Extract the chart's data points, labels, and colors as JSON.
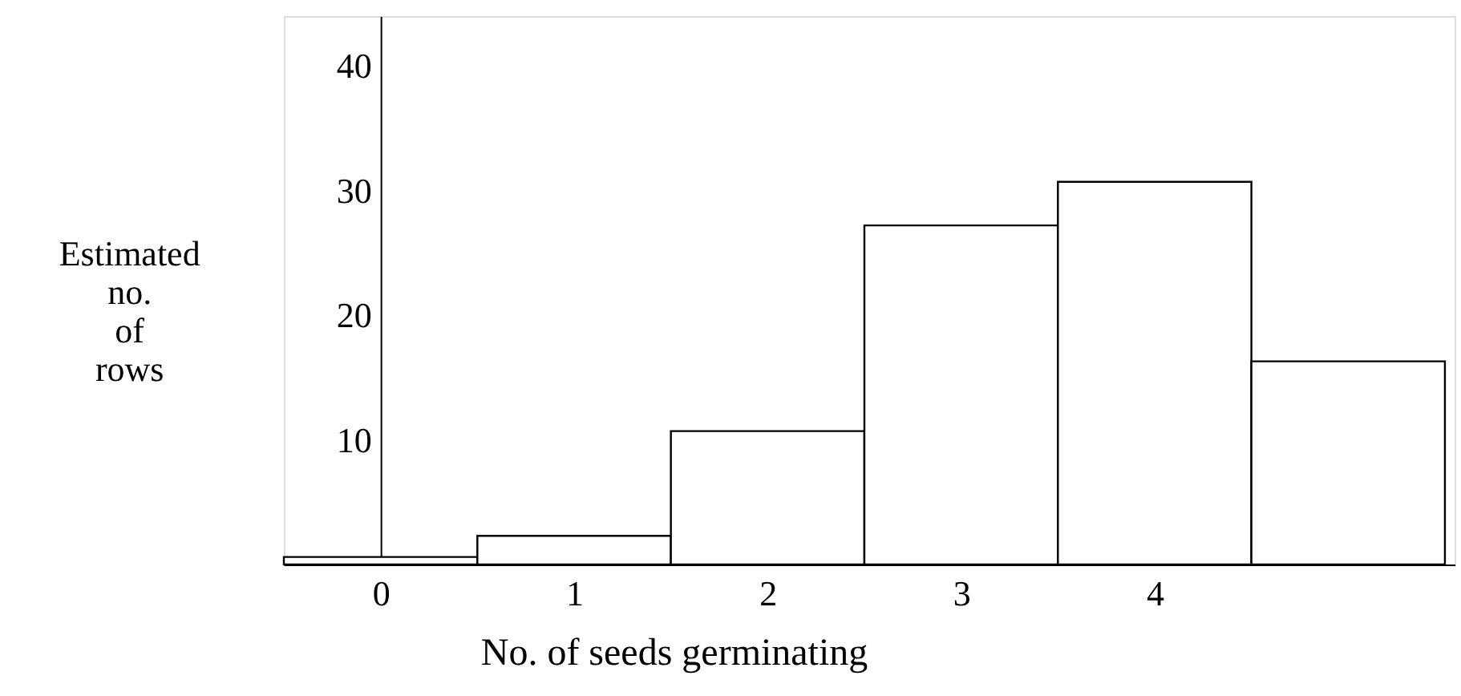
{
  "chart_data": {
    "type": "histogram",
    "xlabel": "No. of seeds germinating",
    "ylabel": "Estimated\nno.\nof\nrows",
    "bins": [
      -0.5,
      0.5,
      1.5,
      2.5,
      3.5,
      4.5,
      5.5
    ],
    "values": [
      0.6,
      2.3,
      10.7,
      27.2,
      30.7,
      16.3
    ],
    "color": "#ffffff",
    "xlim": [
      -0.5,
      5.55
    ],
    "ylim": [
      0,
      44
    ],
    "xticks": [
      0,
      1,
      2,
      3,
      4
    ],
    "yticks": [
      10,
      20,
      30,
      40
    ],
    "grid": false
  }
}
